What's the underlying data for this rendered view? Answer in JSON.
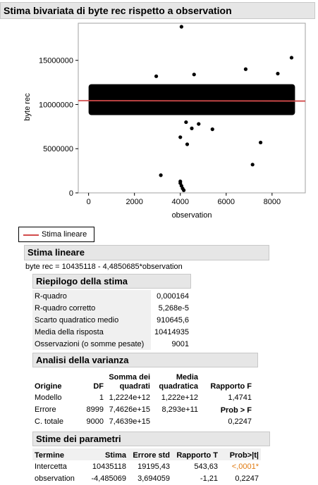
{
  "title": "Stima bivariata di byte rec rispetto a observation",
  "chart_data": {
    "type": "scatter",
    "xlabel": "observation",
    "ylabel": "byte rec",
    "xlim": [
      -450,
      9450
    ],
    "ylim": [
      0,
      19200000
    ],
    "x_ticks": [
      0,
      2000,
      4000,
      6000,
      8000
    ],
    "x_tick_labels": [
      "0",
      "2000",
      "4000",
      "6000",
      "8000"
    ],
    "y_ticks": [
      0,
      5000000,
      10000000,
      15000000
    ],
    "y_tick_labels": [
      "0",
      "5000000",
      "10000000",
      "15000000"
    ],
    "band": {
      "x_min": 0,
      "x_max": 9001,
      "y_min": 8800000,
      "y_max": 12300000
    },
    "fit_line": {
      "intercept": 10435118,
      "slope": -4.4850685
    },
    "outliers": [
      {
        "x": 4050,
        "y": 18800000
      },
      {
        "x": 8850,
        "y": 15300000
      },
      {
        "x": 6850,
        "y": 14000000
      },
      {
        "x": 8250,
        "y": 13500000
      },
      {
        "x": 4600,
        "y": 13400000
      },
      {
        "x": 2950,
        "y": 13200000
      },
      {
        "x": 4250,
        "y": 8000000
      },
      {
        "x": 4800,
        "y": 7800000
      },
      {
        "x": 4500,
        "y": 7300000
      },
      {
        "x": 5400,
        "y": 7200000
      },
      {
        "x": 4000,
        "y": 6300000
      },
      {
        "x": 4300,
        "y": 5500000
      },
      {
        "x": 7500,
        "y": 5700000
      },
      {
        "x": 3150,
        "y": 2000000
      },
      {
        "x": 7150,
        "y": 3200000
      },
      {
        "x": 4000,
        "y": 1100000
      },
      {
        "x": 4050,
        "y": 800000
      },
      {
        "x": 4100,
        "y": 500000
      },
      {
        "x": 4150,
        "y": 300000
      },
      {
        "x": 4000,
        "y": 1300000
      }
    ],
    "colors": {
      "points": "#000000",
      "fit": "#d24b4b"
    }
  },
  "legend_label": "Stima lineare",
  "fit": {
    "header": "Stima lineare",
    "equation": "byte rec = 10435118 - 4,4850685*observation"
  },
  "summary": {
    "header": "Riepilogo della stima",
    "rows": [
      {
        "label": "R-quadro",
        "value": "0,000164"
      },
      {
        "label": "R-quadro corretto",
        "value": "5,268e-5"
      },
      {
        "label": "Scarto quadratico medio",
        "value": "910645,6"
      },
      {
        "label": "Media della risposta",
        "value": "10414935"
      },
      {
        "label": "Osservazioni (o somme pesate)",
        "value": "9001"
      }
    ]
  },
  "anova": {
    "header": "Analisi della varianza",
    "columns": {
      "origine": "Origine",
      "df": "DF",
      "ss": "Somma dei quadrati",
      "ms": "Media quadratica",
      "f": "Rapporto F"
    },
    "prob_label": "Prob > F",
    "rows": [
      {
        "origine": "Modello",
        "df": "1",
        "ss": "1,2224e+12",
        "ms": "1,222e+12",
        "f": "1,4741"
      },
      {
        "origine": "Errore",
        "df": "8999",
        "ss": "7,4626e+15",
        "ms": "8,293e+11",
        "f": ""
      },
      {
        "origine": "C. totale",
        "df": "9000",
        "ss": "7,4639e+15",
        "ms": "",
        "f": "0,2247"
      }
    ]
  },
  "params": {
    "header": "Stime dei parametri",
    "columns": {
      "termine": "Termine",
      "stima": "Stima",
      "err": "Errore std",
      "t": "Rapporto T",
      "p": "Prob>|t|"
    },
    "rows": [
      {
        "termine": "Intercetta",
        "stima": "10435118",
        "err": "19195,43",
        "t": "543,63",
        "p": "<,0001*"
      },
      {
        "termine": "observation",
        "stima": "-4,485069",
        "err": "3,694059",
        "t": "-1,21",
        "p": "0,2247"
      }
    ]
  }
}
